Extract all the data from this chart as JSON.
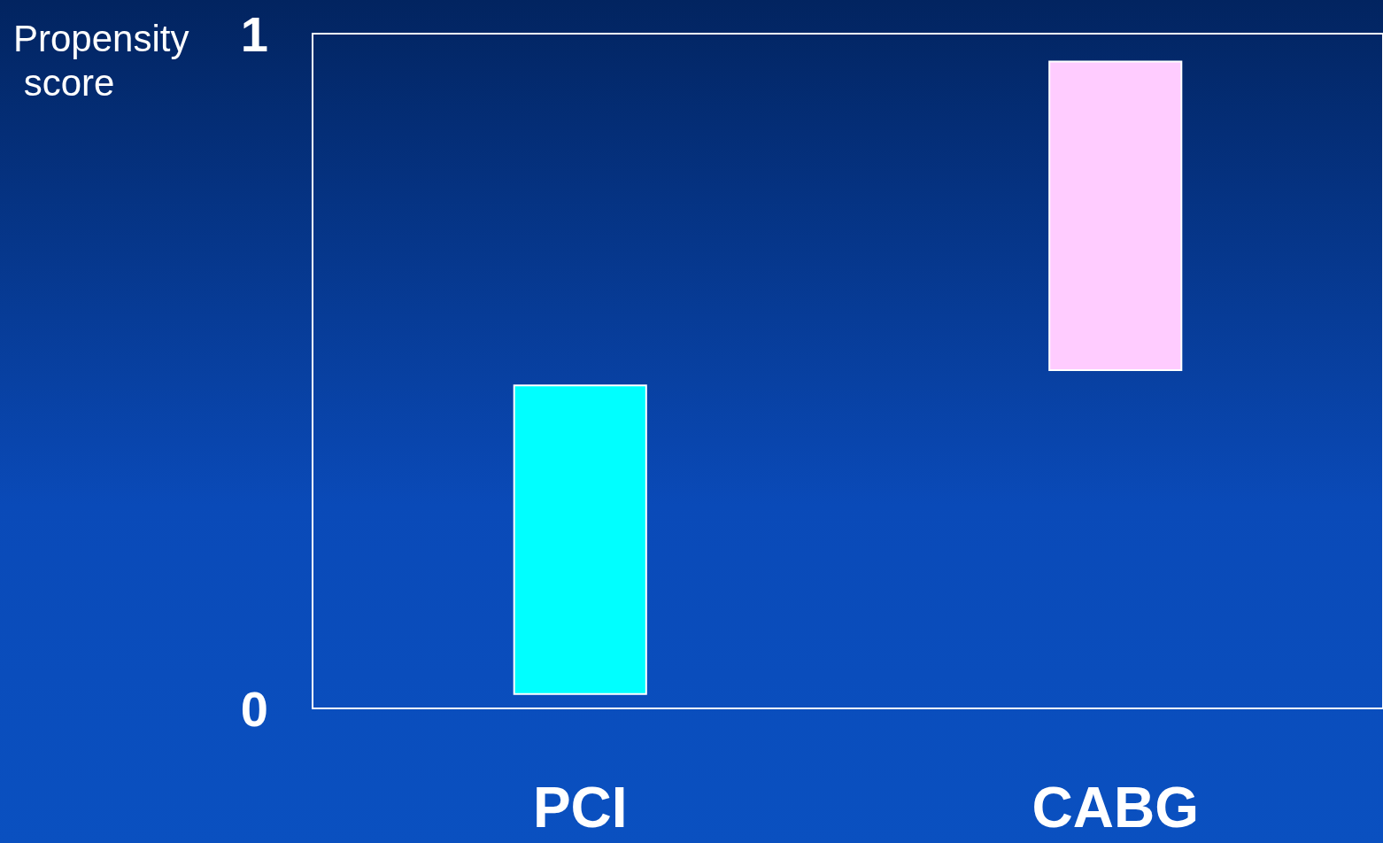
{
  "chart_data": {
    "type": "bar",
    "ylabel": "Propensity score",
    "categories": [
      "PCI",
      "CABG"
    ],
    "values": [
      0.46,
      0.46
    ],
    "base": [
      0.02,
      0.5
    ],
    "colors": [
      "#00ffff",
      "#ffccff"
    ],
    "ylim": [
      0,
      1
    ],
    "yticks": [
      0,
      1
    ],
    "grid": false
  }
}
